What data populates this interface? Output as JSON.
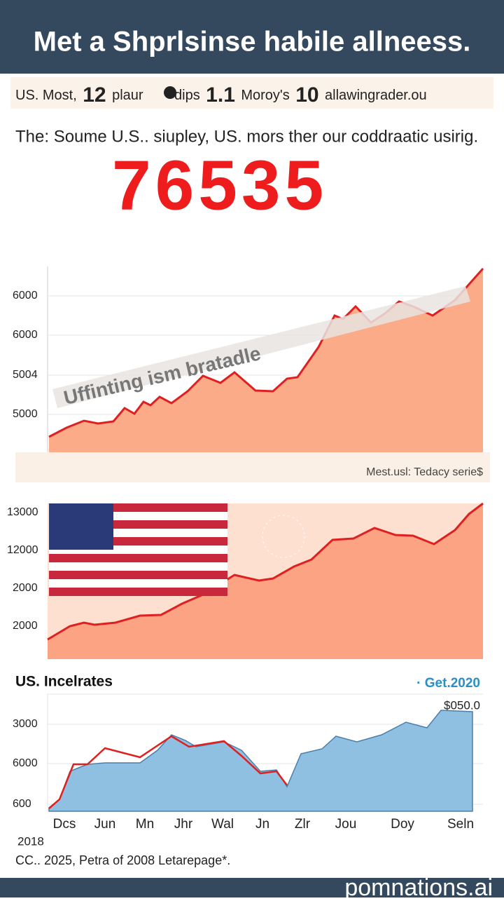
{
  "header": {
    "title": "Met a Shprlsinse habile allneess."
  },
  "subheader": {
    "items": [
      "US. Most,",
      "12",
      "plaur",
      "dips",
      "1.1",
      "Moroy's",
      "10",
      "allawingrader.ou"
    ]
  },
  "tagline": "The: Soume U.S.. siupley, US. mors ther our coddraatic usirig.",
  "headline_number": "76535",
  "charts": [
    {
      "yticks": [
        "6000",
        "6000",
        "5004",
        "5000"
      ],
      "banner": "Uffinting ism bratadle",
      "caption": "Mest.usl: Tedacy serie$"
    },
    {
      "yticks": [
        "13000",
        "12000",
        "2000",
        "2000"
      ]
    },
    {
      "title": "US. Incelrates",
      "legend": "· Get.2020",
      "value_label": "$050.0",
      "yticks": [
        "3000",
        "6000",
        "600"
      ],
      "xticks": [
        "Dcs",
        "Jun",
        "Mn",
        "Jhr",
        "Wal",
        "Jn",
        "Zlr",
        "Jou",
        "Doy",
        "Seln"
      ],
      "year": "2018"
    }
  ],
  "footer": {
    "note": "CC.. 2025, Petra of 2008 Letarepage*.",
    "brand": "pomnations.ai"
  }
}
